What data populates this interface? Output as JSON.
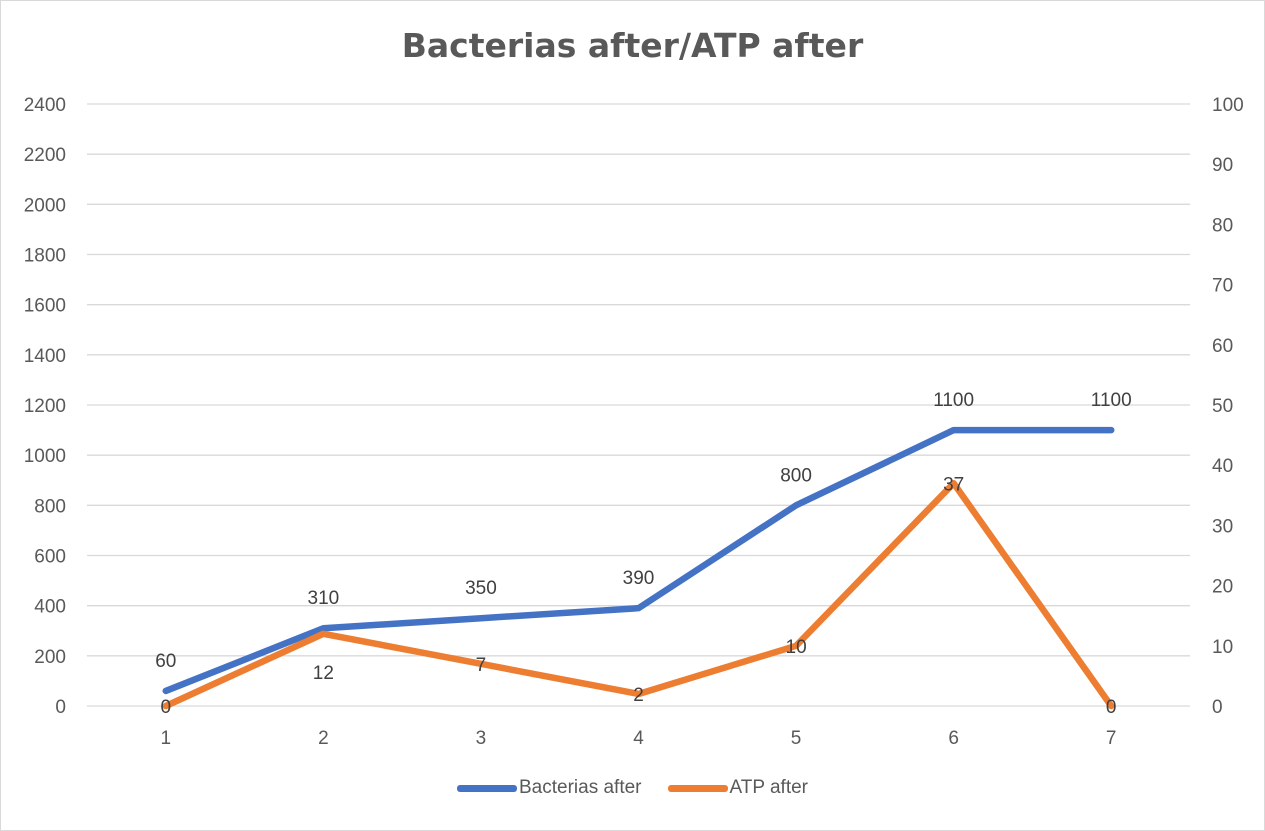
{
  "chart_data": {
    "type": "line",
    "title": "Bacterias after/ATP after",
    "categories": [
      "1",
      "2",
      "3",
      "4",
      "5",
      "6",
      "7"
    ],
    "series": [
      {
        "name": "Bacterias after",
        "axis": "left",
        "color": "#4472c4",
        "values": [
          60,
          310,
          350,
          390,
          800,
          1100,
          1100
        ]
      },
      {
        "name": "ATP after",
        "axis": "right",
        "color": "#ed7d31",
        "values": [
          0,
          12,
          7,
          2,
          10,
          37,
          0
        ]
      }
    ],
    "y_left": {
      "min": 0,
      "max": 2400,
      "step": 200
    },
    "y_right": {
      "min": 0,
      "max": 100,
      "step": 10
    },
    "grid": true,
    "legend": "bottom"
  }
}
